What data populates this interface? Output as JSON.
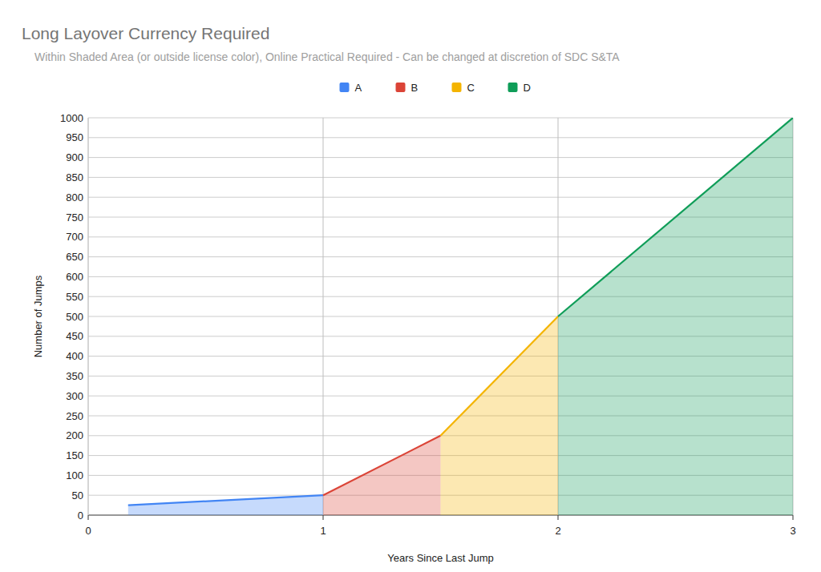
{
  "chart_data": {
    "type": "area",
    "title": "Long Layover Currency Required",
    "subtitle": "Within Shaded Area (or outside license color), Online Practical Required - Can be changed at discretion of SDC S&TA",
    "x_label": "Years Since Last Jump",
    "y_label": "Number of Jumps",
    "series": [
      {
        "name": "A",
        "color": "#4285f4",
        "x": [
          0.17,
          1
        ],
        "values": [
          25,
          50
        ]
      },
      {
        "name": "B",
        "color": "#db4437",
        "x": [
          1,
          1.5
        ],
        "values": [
          50,
          200
        ]
      },
      {
        "name": "C",
        "color": "#f4b400",
        "x": [
          1.5,
          2
        ],
        "values": [
          200,
          500
        ]
      },
      {
        "name": "D",
        "color": "#0f9d58",
        "x": [
          2,
          3
        ],
        "values": [
          500,
          1000
        ]
      }
    ],
    "xlim": [
      0,
      3
    ],
    "xticks": [
      0,
      1,
      2,
      3
    ],
    "ylim": [
      0,
      1000
    ],
    "yticks": [
      0,
      50,
      100,
      150,
      200,
      250,
      300,
      350,
      400,
      450,
      500,
      550,
      600,
      650,
      700,
      750,
      800,
      850,
      900,
      950,
      1000
    ],
    "grid": true,
    "legend": "top"
  }
}
